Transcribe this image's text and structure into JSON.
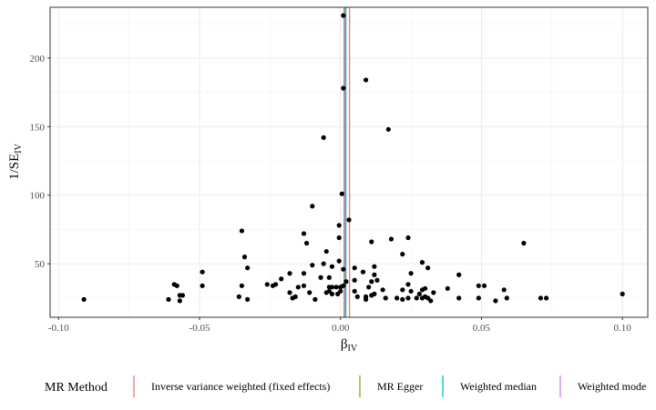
{
  "chart_data": {
    "type": "scatter",
    "title": "",
    "xlabel": "β",
    "xlabel_sub": "IV",
    "ylabel": "1/SE",
    "ylabel_sub": "IV",
    "xlim": [
      -0.103,
      0.109
    ],
    "ylim": [
      11,
      237
    ],
    "xticks": [
      -0.1,
      -0.05,
      0.0,
      0.05,
      0.1
    ],
    "xtick_labels": [
      "-0.10",
      "-0.05",
      "0.00",
      "0.05",
      "0.10"
    ],
    "yticks": [
      50,
      100,
      150,
      200
    ],
    "ytick_labels": [
      "50",
      "100",
      "150",
      "200"
    ],
    "grid": true,
    "legend_position": "bottom",
    "legend_title": "MR Method",
    "methods": [
      {
        "name": "Inverse variance weighted (fixed effects)",
        "color": "#F8766D",
        "estimate": 0.0032
      },
      {
        "name": "MR Egger",
        "color": "#7CAE00",
        "estimate": 0.0013
      },
      {
        "name": "Weighted median",
        "color": "#00BFC4",
        "estimate": 0.0019
      },
      {
        "name": "Weighted mode",
        "color": "#C77CFF",
        "estimate": 0.0016
      }
    ],
    "points": [
      [
        0.001,
        231
      ],
      [
        0.001,
        178
      ],
      [
        0.009,
        184
      ],
      [
        -0.006,
        142
      ],
      [
        0.017,
        148
      ],
      [
        0.0005,
        101
      ],
      [
        -0.01,
        92
      ],
      [
        0.003,
        82
      ],
      [
        -0.0005,
        78
      ],
      [
        -0.035,
        74
      ],
      [
        -0.013,
        72
      ],
      [
        -0.0005,
        69
      ],
      [
        0.018,
        68
      ],
      [
        0.024,
        69
      ],
      [
        0.011,
        66
      ],
      [
        0.065,
        65
      ],
      [
        -0.012,
        65
      ],
      [
        -0.005,
        59
      ],
      [
        0.022,
        57
      ],
      [
        -0.034,
        55
      ],
      [
        -0.0005,
        52
      ],
      [
        0.029,
        51
      ],
      [
        -0.006,
        50
      ],
      [
        -0.01,
        49
      ],
      [
        -0.003,
        48
      ],
      [
        0.012,
        48
      ],
      [
        0.031,
        47
      ],
      [
        -0.033,
        47
      ],
      [
        0.005,
        47
      ],
      [
        0.001,
        46
      ],
      [
        0.008,
        44
      ],
      [
        -0.049,
        44
      ],
      [
        -0.018,
        43
      ],
      [
        -0.013,
        43
      ],
      [
        0.025,
        43
      ],
      [
        0.042,
        42
      ],
      [
        0.012,
        42
      ],
      [
        -0.004,
        40
      ],
      [
        -0.007,
        40
      ],
      [
        -0.021,
        39
      ],
      [
        0.013,
        38
      ],
      [
        0.005,
        38
      ],
      [
        0.011,
        37
      ],
      [
        0.002,
        37
      ],
      [
        -0.026,
        35
      ],
      [
        -0.023,
        35
      ],
      [
        -0.035,
        34
      ],
      [
        -0.059,
        35
      ],
      [
        -0.058,
        34
      ],
      [
        -0.049,
        34
      ],
      [
        -0.013,
        34
      ],
      [
        0.024,
        35
      ],
      [
        0.049,
        34
      ],
      [
        0.051,
        34
      ],
      [
        0.001,
        34
      ],
      [
        -0.003,
        33
      ],
      [
        -0.024,
        34
      ],
      [
        -0.015,
        33
      ],
      [
        -0.004,
        33
      ],
      [
        0.01,
        33
      ],
      [
        0.0,
        33
      ],
      [
        -0.0015,
        33
      ],
      [
        0.03,
        32
      ],
      [
        0.029,
        31
      ],
      [
        0.038,
        32
      ],
      [
        0.022,
        31
      ],
      [
        0.015,
        31
      ],
      [
        -0.004,
        30
      ],
      [
        0.005,
        30
      ],
      [
        0.058,
        31
      ],
      [
        0.0,
        30
      ],
      [
        0.025,
        30
      ],
      [
        -0.005,
        29
      ],
      [
        -0.018,
        29
      ],
      [
        0.033,
        29
      ],
      [
        -0.011,
        29
      ],
      [
        0.012,
        28
      ],
      [
        -0.003,
        28
      ],
      [
        0.028,
        28
      ],
      [
        -0.001,
        28
      ],
      [
        0.011,
        27
      ],
      [
        -0.057,
        27
      ],
      [
        -0.056,
        27
      ],
      [
        0.1,
        28
      ],
      [
        0.006,
        26
      ],
      [
        -0.016,
        26
      ],
      [
        -0.036,
        26
      ],
      [
        0.009,
        26
      ],
      [
        0.02,
        25
      ],
      [
        0.016,
        25
      ],
      [
        0.029,
        25
      ],
      [
        0.03,
        26
      ],
      [
        0.027,
        25
      ],
      [
        0.024,
        25
      ],
      [
        0.031,
        25
      ],
      [
        0.071,
        25
      ],
      [
        0.073,
        25
      ],
      [
        0.042,
        25
      ],
      [
        0.049,
        25
      ],
      [
        0.059,
        25
      ],
      [
        -0.009,
        24
      ],
      [
        -0.017,
        25
      ],
      [
        -0.033,
        24
      ],
      [
        -0.061,
        24
      ],
      [
        -0.057,
        23
      ],
      [
        0.022,
        24
      ],
      [
        0.009,
        24
      ],
      [
        0.032,
        23
      ],
      [
        0.055,
        23
      ],
      [
        -0.091,
        24
      ]
    ]
  }
}
